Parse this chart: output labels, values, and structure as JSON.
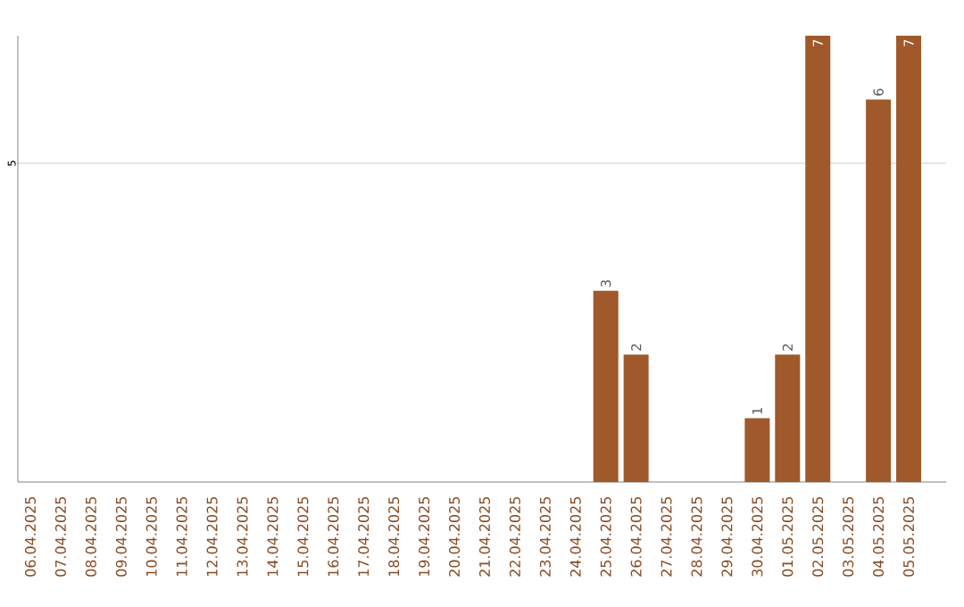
{
  "chart_data": {
    "type": "bar",
    "categories": [
      "06.04.2025",
      "07.04.2025",
      "08.04.2025",
      "09.04.2025",
      "10.04.2025",
      "11.04.2025",
      "12.04.2025",
      "13.04.2025",
      "14.04.2025",
      "15.04.2025",
      "16.04.2025",
      "17.04.2025",
      "18.04.2025",
      "19.04.2025",
      "20.04.2025",
      "21.04.2025",
      "22.04.2025",
      "23.04.2025",
      "24.04.2025",
      "25.04.2025",
      "26.04.2025",
      "27.04.2025",
      "28.04.2025",
      "29.04.2025",
      "30.04.2025",
      "01.05.2025",
      "02.05.2025",
      "03.05.2025",
      "04.05.2025",
      "05.05.2025"
    ],
    "values": [
      null,
      null,
      null,
      null,
      null,
      null,
      null,
      null,
      null,
      null,
      null,
      null,
      null,
      null,
      null,
      null,
      null,
      null,
      null,
      3,
      2,
      null,
      null,
      null,
      1,
      2,
      7,
      null,
      6,
      7
    ],
    "color": "#a0592a",
    "ylim": [
      0,
      7
    ],
    "yticks": [
      5
    ],
    "grid": "y",
    "data_labels": true
  }
}
